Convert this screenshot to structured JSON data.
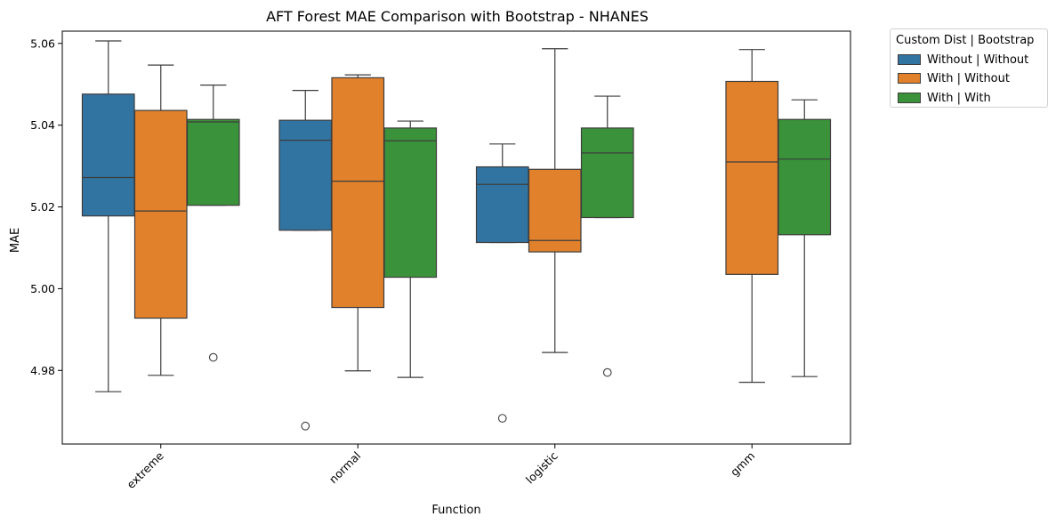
{
  "chart_data": {
    "type": "box",
    "title": "AFT Forest MAE Comparison with Bootstrap - NHANES",
    "xlabel": "Function",
    "ylabel": "MAE",
    "categories": [
      "extreme",
      "normal",
      "logistic",
      "gmm"
    ],
    "ylim": [
      4.962,
      5.063
    ],
    "yticks": [
      4.98,
      5.0,
      5.02,
      5.04,
      5.06
    ],
    "ytick_labels": [
      "4.98",
      "5.00",
      "5.02",
      "5.04",
      "5.06"
    ],
    "legend": {
      "title": "Custom Dist | Bootstrap",
      "placement": "outside-top-right"
    },
    "series": [
      {
        "name": "Without | Without",
        "color": "#3274a1",
        "boxes": [
          {
            "category": "extreme",
            "whislo": 4.9748,
            "q1": 5.0178,
            "med": 5.0272,
            "q3": 5.0476,
            "whishi": 5.0606,
            "fliers": []
          },
          {
            "category": "normal",
            "whislo": 5.0143,
            "q1": 5.0143,
            "med": 5.0363,
            "q3": 5.0412,
            "whishi": 5.0485,
            "fliers": [
              4.9664
            ]
          },
          {
            "category": "logistic",
            "whislo": 5.0113,
            "q1": 5.0113,
            "med": 5.0255,
            "q3": 5.0298,
            "whishi": 5.0354,
            "fliers": [
              4.9683
            ]
          }
        ]
      },
      {
        "name": "With | Without",
        "color": "#e1812c",
        "boxes": [
          {
            "category": "extreme",
            "whislo": 4.9788,
            "q1": 4.9928,
            "med": 5.019,
            "q3": 5.0436,
            "whishi": 5.0547,
            "fliers": []
          },
          {
            "category": "normal",
            "whislo": 4.9799,
            "q1": 4.9954,
            "med": 5.0263,
            "q3": 5.0516,
            "whishi": 5.0523,
            "fliers": []
          },
          {
            "category": "logistic",
            "whislo": 4.9844,
            "q1": 5.009,
            "med": 5.0118,
            "q3": 5.0292,
            "whishi": 5.0587,
            "fliers": []
          },
          {
            "category": "gmm",
            "whislo": 4.9771,
            "q1": 5.0035,
            "med": 5.031,
            "q3": 5.0507,
            "whishi": 5.0585,
            "fliers": []
          }
        ]
      },
      {
        "name": "With | With",
        "color": "#3a923a",
        "boxes": [
          {
            "category": "extreme",
            "whislo": 5.0204,
            "q1": 5.0204,
            "med": 5.0408,
            "q3": 5.0414,
            "whishi": 5.0498,
            "fliers": [
              4.9832
            ]
          },
          {
            "category": "normal",
            "whislo": 4.9783,
            "q1": 5.0028,
            "med": 5.0362,
            "q3": 5.0393,
            "whishi": 5.041,
            "fliers": []
          },
          {
            "category": "logistic",
            "whislo": 5.0174,
            "q1": 5.0174,
            "med": 5.0332,
            "q3": 5.0393,
            "whishi": 5.0471,
            "fliers": [
              4.9795
            ]
          },
          {
            "category": "gmm",
            "whislo": 4.9785,
            "q1": 5.0132,
            "med": 5.0317,
            "q3": 5.0414,
            "whishi": 5.0462,
            "fliers": []
          }
        ]
      }
    ]
  }
}
